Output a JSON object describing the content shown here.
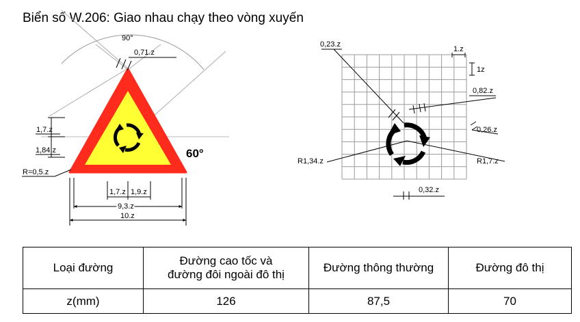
{
  "title": "Biển số W.206: Giao nhau chạy theo vòng xuyến",
  "left_figure": {
    "angle_top": "90°",
    "top_edge": "0,71.z",
    "h1": "1,7.z",
    "h2": "1,84.z",
    "radius": "R=0,5.z",
    "angle_right": "60°",
    "w1": "1,7.z",
    "w2": "1,9.z",
    "inner_width": "9,3.z",
    "outer_width": "10.z"
  },
  "right_figure": {
    "label_023": "0,23.z",
    "grid_unit_h": "1.z",
    "grid_unit_v": "1z",
    "label_082": "0,82.z",
    "label_026": "0,26.z",
    "label_r134": "R1,34.z",
    "label_r17": "R1,7.z",
    "label_032": "0,32.z"
  },
  "colors": {
    "sign_red": "#ff2b1c",
    "sign_yellow": "#ffff33",
    "ink": "#000000"
  },
  "table": {
    "headers": [
      "Loại đường",
      "Đường cao tốc và đường đôi ngoài đô thị",
      "Đường thông thường",
      "Đường đô thị"
    ],
    "header_lines": {
      "col2_line1": "Đường cao tốc và",
      "col2_line2": "đường đôi ngoài đô thị"
    },
    "row": [
      "z(mm)",
      "126",
      "87,5",
      "70"
    ]
  }
}
